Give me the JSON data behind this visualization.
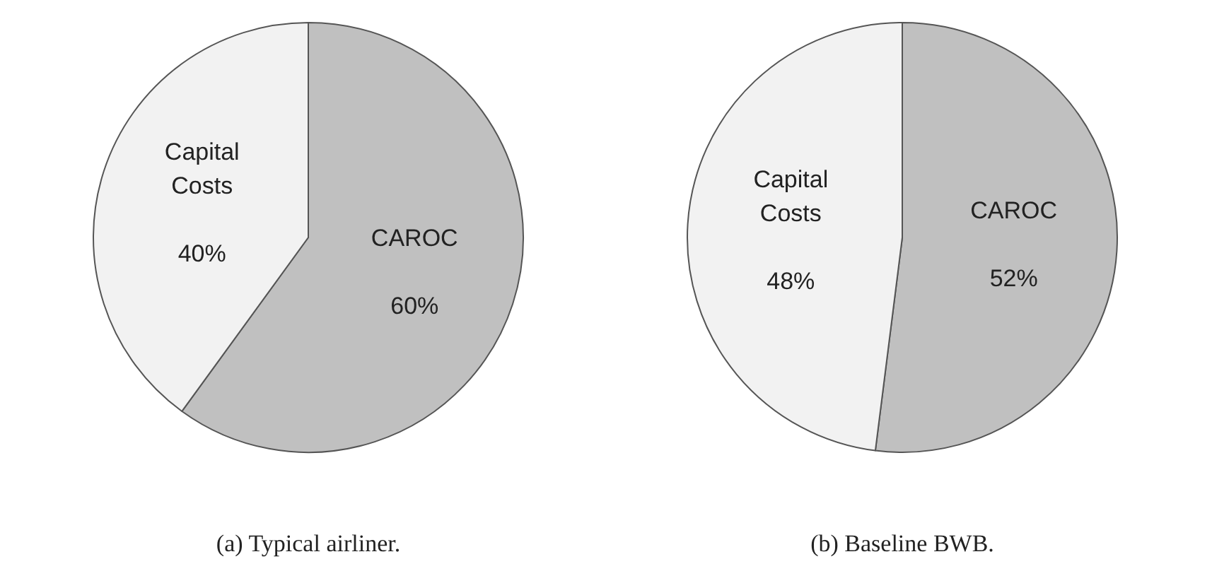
{
  "chart_data": [
    {
      "type": "pie",
      "title": "(a) Typical airliner.",
      "categories": [
        "CAROC",
        "Capital Costs"
      ],
      "values": [
        60,
        40
      ],
      "value_labels": [
        "60%",
        "40%"
      ],
      "colors": [
        "#c0c0c0",
        "#f2f2f2"
      ],
      "legend": false
    },
    {
      "type": "pie",
      "title": "(b) Baseline BWB.",
      "categories": [
        "CAROC",
        "Capital Costs"
      ],
      "values": [
        52,
        48
      ],
      "value_labels": [
        "52%",
        "48%"
      ],
      "colors": [
        "#c0c0c0",
        "#f2f2f2"
      ],
      "legend": false
    }
  ]
}
